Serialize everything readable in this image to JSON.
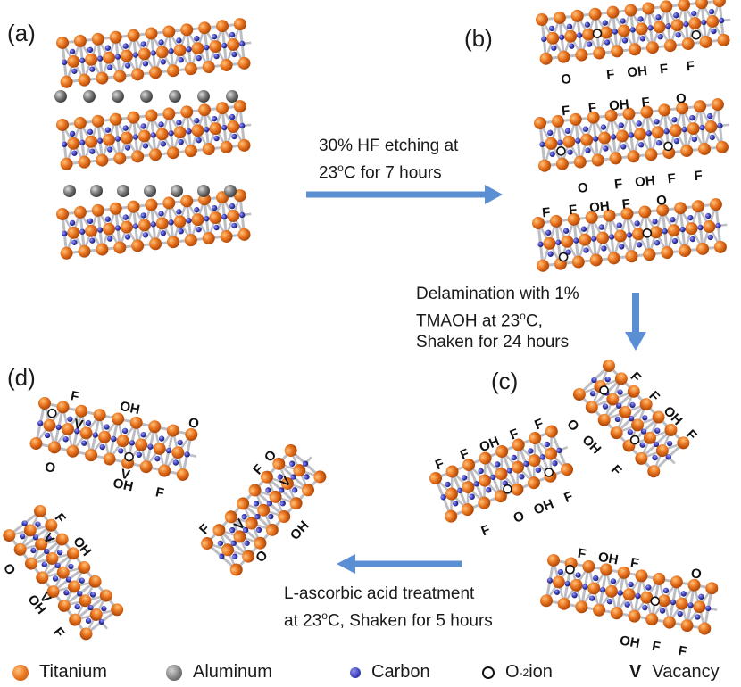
{
  "panels": {
    "a": "(a)",
    "b": "(b)",
    "c": "(c)",
    "d": "(d)"
  },
  "steps": {
    "etch_line1": "30% HF etching at",
    "etch_line2_pre": "23",
    "etch_line2_sup": "o",
    "etch_line2_post": "C for 7 hours",
    "delam_line1": "Delamination with 1%",
    "delam_line2_pre": "TMAOH at 23",
    "delam_line2_sup": "o",
    "delam_line2_post": "C,",
    "delam_line3": "Shaken for 24 hours",
    "ascorbic_line1": "L-ascorbic acid treatment",
    "ascorbic_line2_pre": "at 23",
    "ascorbic_line2_sup": "o",
    "ascorbic_line2_post": "C, Shaken for 5 hours"
  },
  "terminations": {
    "F": "F",
    "OH": "OH",
    "O": "O",
    "V": "V"
  },
  "legend": {
    "titanium": "Titanium",
    "aluminum": "Aluminum",
    "carbon": "Carbon",
    "oxygen_pre": "O",
    "oxygen_sup": "-2",
    "oxygen_post": " ion",
    "vacancy_symbol": "V",
    "vacancy": "Vacancy"
  },
  "colors": {
    "titanium": "#e8731e",
    "aluminum": "#808080",
    "carbon": "#3b3fbf",
    "bond": "#bdbdc4",
    "arrow": "#5b8fd3"
  }
}
